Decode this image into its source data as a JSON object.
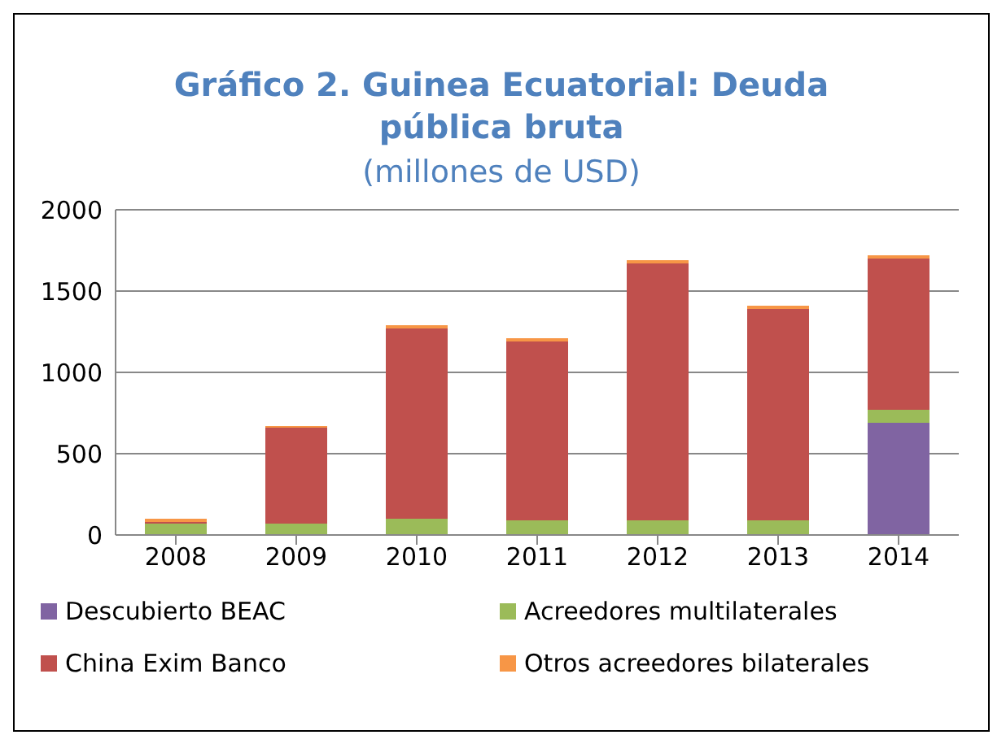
{
  "chart_data": {
    "type": "bar",
    "title": "Gráfico 2. Guinea Ecuatorial: Deuda pública bruta",
    "subtitle": "(millones de USD)",
    "categories": [
      "2008",
      "2009",
      "2010",
      "2011",
      "2012",
      "2013",
      "2014"
    ],
    "stacked": true,
    "series": [
      {
        "name": "Descubierto BEAC",
        "color": "#8064a2",
        "values": [
          0,
          0,
          0,
          0,
          0,
          0,
          690
        ]
      },
      {
        "name": "Acreedores multilaterales",
        "color": "#9bbb59",
        "values": [
          70,
          70,
          100,
          90,
          90,
          90,
          80
        ]
      },
      {
        "name": "China Exim Banco",
        "color": "#c0504d",
        "values": [
          10,
          590,
          1170,
          1100,
          1580,
          1300,
          930
        ]
      },
      {
        "name": "Otros acreedores bilaterales",
        "color": "#f79646",
        "values": [
          20,
          10,
          20,
          20,
          20,
          20,
          20
        ]
      }
    ],
    "ylim": [
      0,
      2000
    ],
    "yticks": [
      0,
      500,
      1000,
      1500,
      2000
    ],
    "grid": "y",
    "legend": "bottom"
  }
}
